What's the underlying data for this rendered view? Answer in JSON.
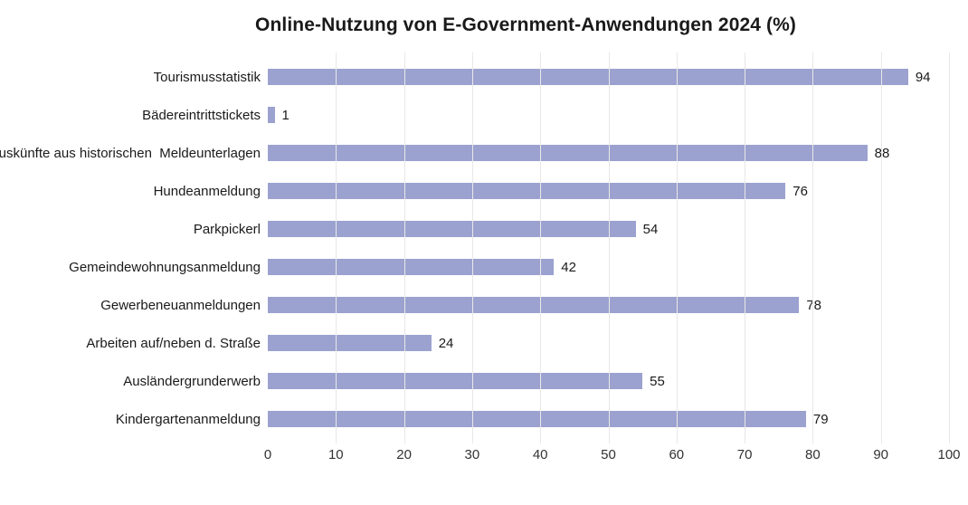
{
  "page": {
    "background": "#ffffff"
  },
  "chart_data": {
    "type": "bar",
    "orientation": "horizontal",
    "title": "Online-Nutzung von E-Government-Anwendungen 2024 (%)",
    "categories": [
      "Tourismusstatistik",
      "Bädereintrittstickets",
      "Auskünfte aus historischen  Meldeunterlagen",
      "Hundeanmeldung",
      "Parkpickerl",
      "Gemeindewohnungsanmeldung",
      "Gewerbeneuanmeldungen",
      "Arbeiten auf/neben d. Straße",
      "Ausländergrunderwerb",
      "Kindergartenanmeldung"
    ],
    "values": [
      94,
      1,
      88,
      76,
      54,
      42,
      78,
      24,
      55,
      79
    ],
    "value_labels": [
      "94",
      "1",
      "88",
      "76",
      "54",
      "42",
      "78",
      "24",
      "55",
      "79"
    ],
    "xlabel": "",
    "ylabel": "",
    "xlim": [
      0,
      100
    ],
    "xticks": [
      0,
      10,
      20,
      30,
      40,
      50,
      60,
      70,
      80,
      90,
      100
    ],
    "grid": "vertical-gridlines-on",
    "legend": "none",
    "bar_color": "#9ba2cf",
    "gridline_color": "#e8e8e8",
    "title_color": "#1a1a1a",
    "label_color": "#1a1a1a",
    "tick_label_color": "#333333"
  }
}
